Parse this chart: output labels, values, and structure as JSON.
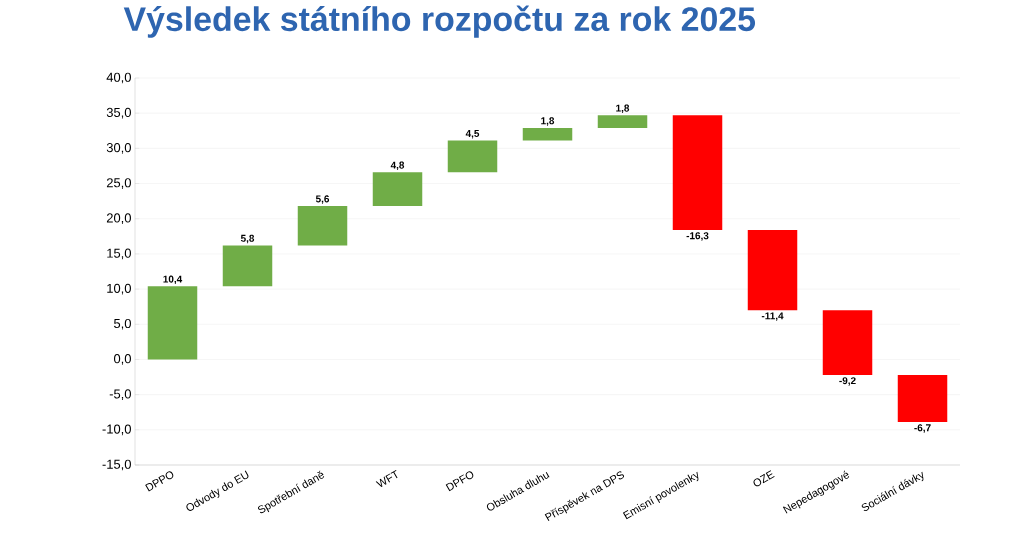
{
  "chart_data": {
    "type": "bar",
    "title": "Výsledek státního rozpočtu za rok 2025",
    "categories": [
      "DPPO",
      "Odvody do EU",
      "Spotřební daně",
      "WFT",
      "DPFO",
      "Obsluha dluhu",
      "Příspěvek na DPS",
      "Emisní povolenky",
      "OZE",
      "Nepedagogové",
      "Sociální dávky"
    ],
    "values": [
      10.4,
      5.8,
      5.6,
      4.8,
      4.5,
      1.8,
      1.8,
      -16.3,
      -11.4,
      -9.2,
      -6.7
    ],
    "base": [
      0,
      10.4,
      16.2,
      21.8,
      26.6,
      31.1,
      32.9,
      34.7,
      18.4,
      7.0,
      -2.2
    ],
    "colors": [
      "#70ad47",
      "#70ad47",
      "#70ad47",
      "#70ad47",
      "#70ad47",
      "#70ad47",
      "#70ad47",
      "#ff0000",
      "#ff0000",
      "#ff0000",
      "#ff0000"
    ],
    "value_labels": [
      "10,4",
      "5,8",
      "5,6",
      "4,8",
      "4,5",
      "1,8",
      "1,8",
      "-16,3",
      "-11,4",
      "-9,2",
      "-6,7"
    ],
    "ylim": [
      -15,
      40
    ],
    "yticks": [
      {
        "value": -15,
        "label": "-15,0"
      },
      {
        "value": -10,
        "label": "-10,0"
      },
      {
        "value": -5,
        "label": "-5,0"
      },
      {
        "value": 0,
        "label": "0,0"
      },
      {
        "value": 5,
        "label": "5,0"
      },
      {
        "value": 10,
        "label": "10,0"
      },
      {
        "value": 15,
        "label": "15,0"
      },
      {
        "value": 20,
        "label": "20,0"
      },
      {
        "value": 25,
        "label": "25,0"
      },
      {
        "value": 30,
        "label": "30,0"
      },
      {
        "value": 35,
        "label": "35,0"
      },
      {
        "value": 40,
        "label": "40,0"
      }
    ],
    "grid": "y"
  }
}
